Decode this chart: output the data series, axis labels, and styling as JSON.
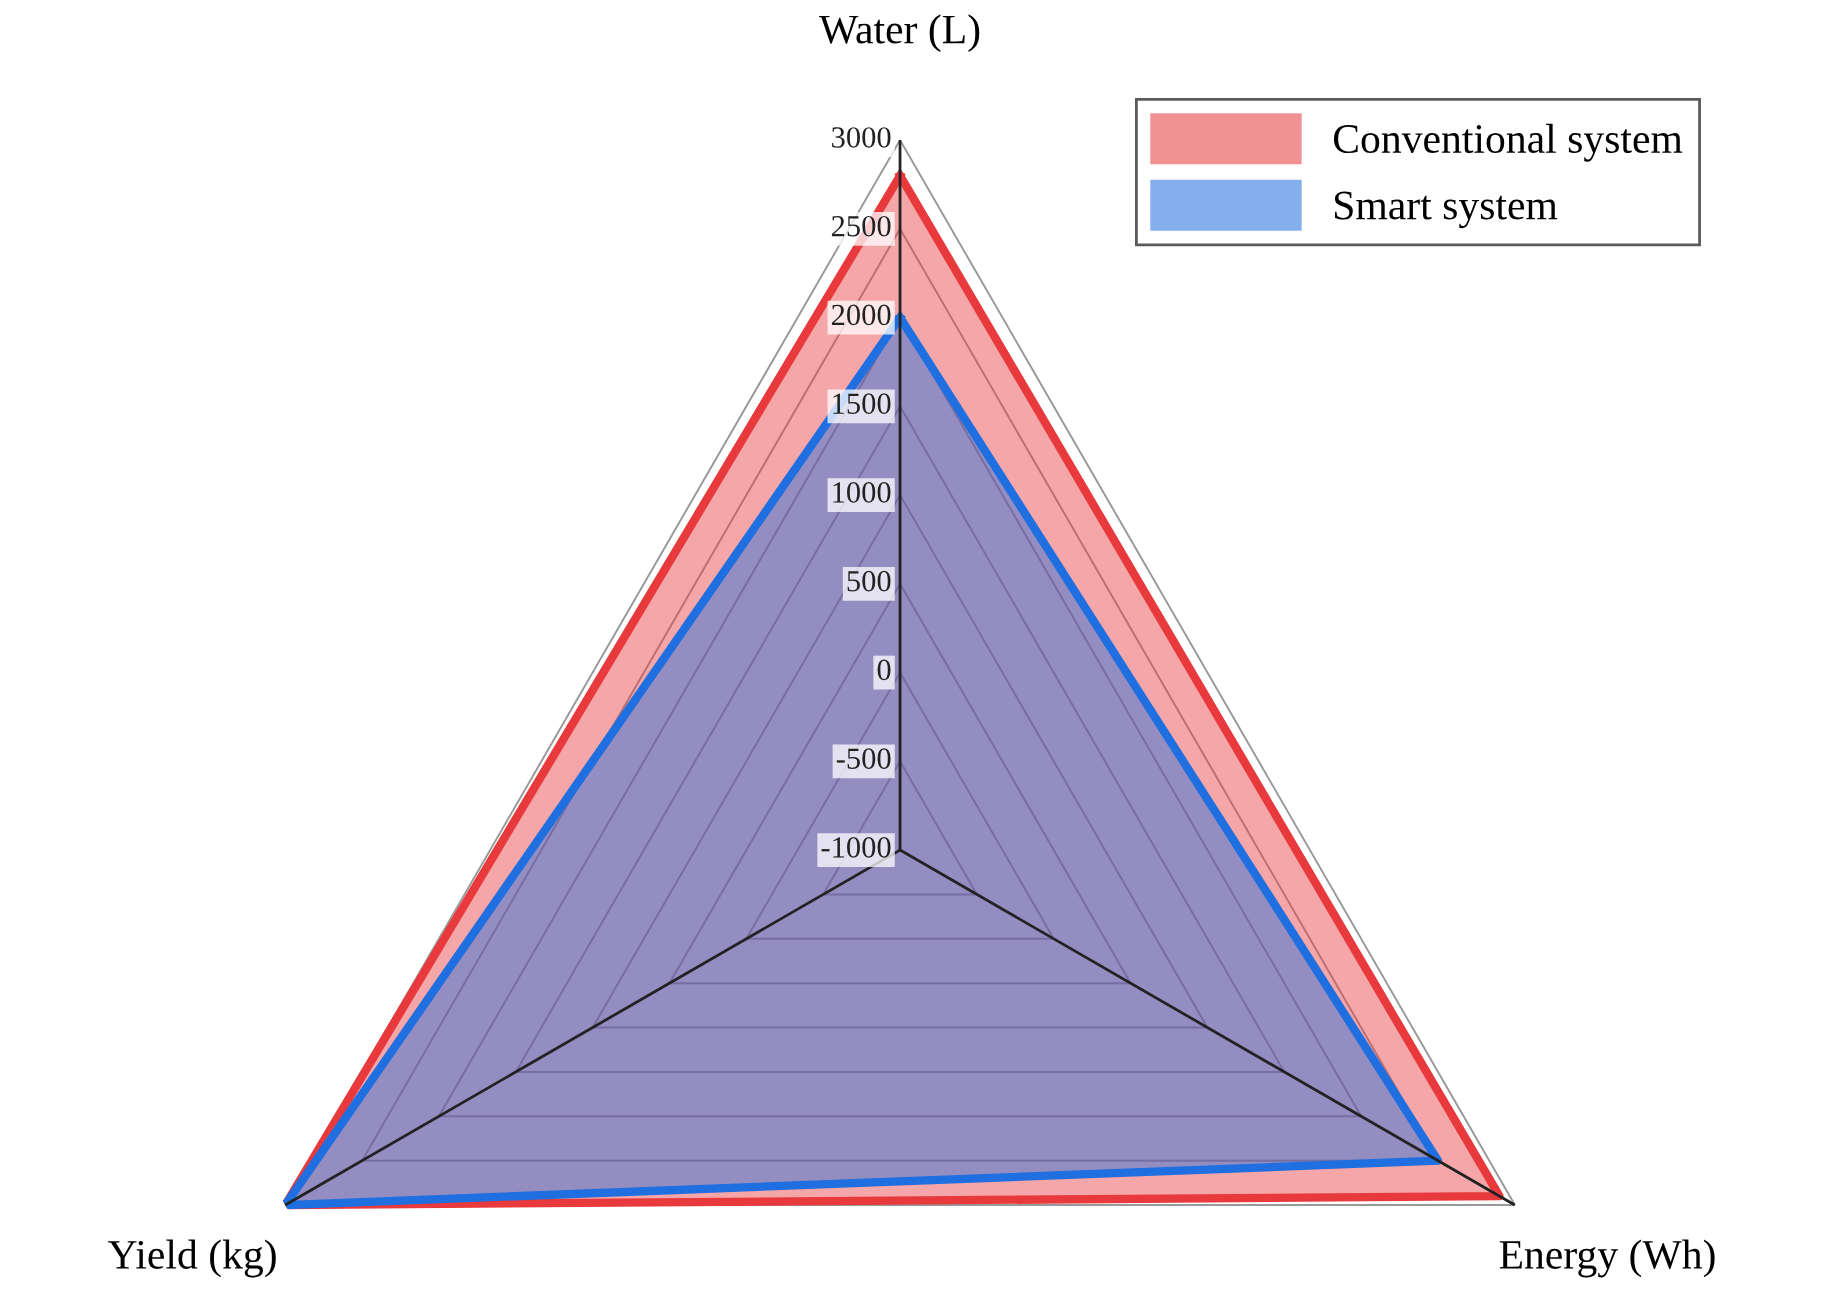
{
  "chart_data": {
    "type": "radar",
    "categories": [
      "Water (L)",
      "Energy (Wh)",
      "Yield (kg)"
    ],
    "series": [
      {
        "name": "Conventional system",
        "color": "#e8393d",
        "values": [
          2800,
          2900,
          3000
        ]
      },
      {
        "name": "Smart system",
        "color": "#1f6fe0",
        "values": [
          2000,
          2500,
          3000
        ]
      }
    ],
    "ylim": [
      -1000,
      3000
    ],
    "yticks": [
      -1000,
      -500,
      0,
      500,
      1000,
      1500,
      2000,
      2500,
      3000
    ],
    "grid": true,
    "legend": "top right"
  }
}
